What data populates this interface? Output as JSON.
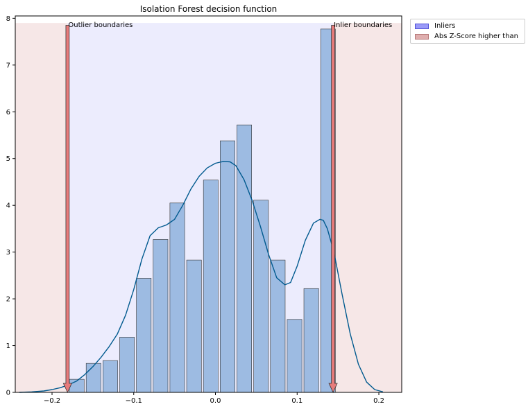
{
  "chart_data": {
    "type": "bar",
    "title": "Isolation Forest decision function",
    "xlabel": "",
    "ylabel": "",
    "xlim": [
      -0.245,
      0.228
    ],
    "ylim": [
      0,
      8.05
    ],
    "x_ticks": [
      -0.2,
      -0.1,
      0.0,
      0.1,
      0.2
    ],
    "x_tick_labels": [
      "−0.2",
      "−0.1",
      "0.0",
      "0.1",
      "0.2"
    ],
    "y_ticks": [
      0,
      1,
      2,
      3,
      4,
      5,
      6,
      7,
      8
    ],
    "y_tick_labels": [
      "0",
      "1",
      "2",
      "3",
      "4",
      "5",
      "6",
      "7",
      "8"
    ],
    "grid": false,
    "bin_width": 0.0205,
    "histogram": {
      "bin_centers": [
        -0.1697,
        -0.1492,
        -0.1287,
        -0.1082,
        -0.0877,
        -0.0672,
        -0.0467,
        -0.0262,
        -0.0057,
        0.0148,
        0.0353,
        0.0558,
        0.0763,
        0.0968,
        0.1173,
        0.1378
      ],
      "values": [
        0.28,
        0.62,
        0.68,
        1.18,
        2.44,
        3.27,
        4.05,
        2.83,
        4.54,
        5.38,
        5.72,
        4.11,
        2.83,
        1.56,
        2.22,
        7.77
      ],
      "fill": "#9dbbe2",
      "edge": "#333333"
    },
    "kde": {
      "color": "#015a8f",
      "x": [
        -0.24,
        -0.225,
        -0.21,
        -0.2,
        -0.19,
        -0.18,
        -0.17,
        -0.16,
        -0.15,
        -0.14,
        -0.13,
        -0.12,
        -0.11,
        -0.1,
        -0.09,
        -0.08,
        -0.07,
        -0.06,
        -0.05,
        -0.04,
        -0.03,
        -0.02,
        -0.01,
        0.0,
        0.01,
        0.018,
        0.025,
        0.035,
        0.045,
        0.055,
        0.065,
        0.075,
        0.085,
        0.092,
        0.1,
        0.11,
        0.12,
        0.128,
        0.132,
        0.137,
        0.145,
        0.155,
        0.165,
        0.175,
        0.185,
        0.195,
        0.205
      ],
      "y": [
        0.0,
        0.01,
        0.03,
        0.06,
        0.1,
        0.16,
        0.24,
        0.38,
        0.55,
        0.75,
        0.98,
        1.25,
        1.65,
        2.2,
        2.85,
        3.35,
        3.52,
        3.58,
        3.7,
        4.0,
        4.35,
        4.62,
        4.8,
        4.9,
        4.94,
        4.93,
        4.85,
        4.55,
        4.1,
        3.55,
        2.95,
        2.45,
        2.3,
        2.35,
        2.7,
        3.25,
        3.62,
        3.7,
        3.68,
        3.5,
        3.0,
        2.1,
        1.25,
        0.6,
        0.22,
        0.06,
        0.01
      ]
    },
    "regions": {
      "inlier_color": "#ececfd",
      "outlier_color": "#f6e7e7",
      "inlier_range": [
        -0.181,
        0.144
      ],
      "top": 7.9
    },
    "arrows": [
      {
        "x": -0.181,
        "label": "Outlier boundaries"
      },
      {
        "x": 0.144,
        "label": "Inlier boundaries"
      }
    ],
    "arrow_color": "#e77b7b",
    "legend": {
      "placement": "outside-top-right",
      "entries": [
        {
          "label": "Inliers",
          "color": "#9a9af8"
        },
        {
          "label": "Abs Z-Score higher than",
          "color": "#dfaeae"
        }
      ]
    }
  }
}
